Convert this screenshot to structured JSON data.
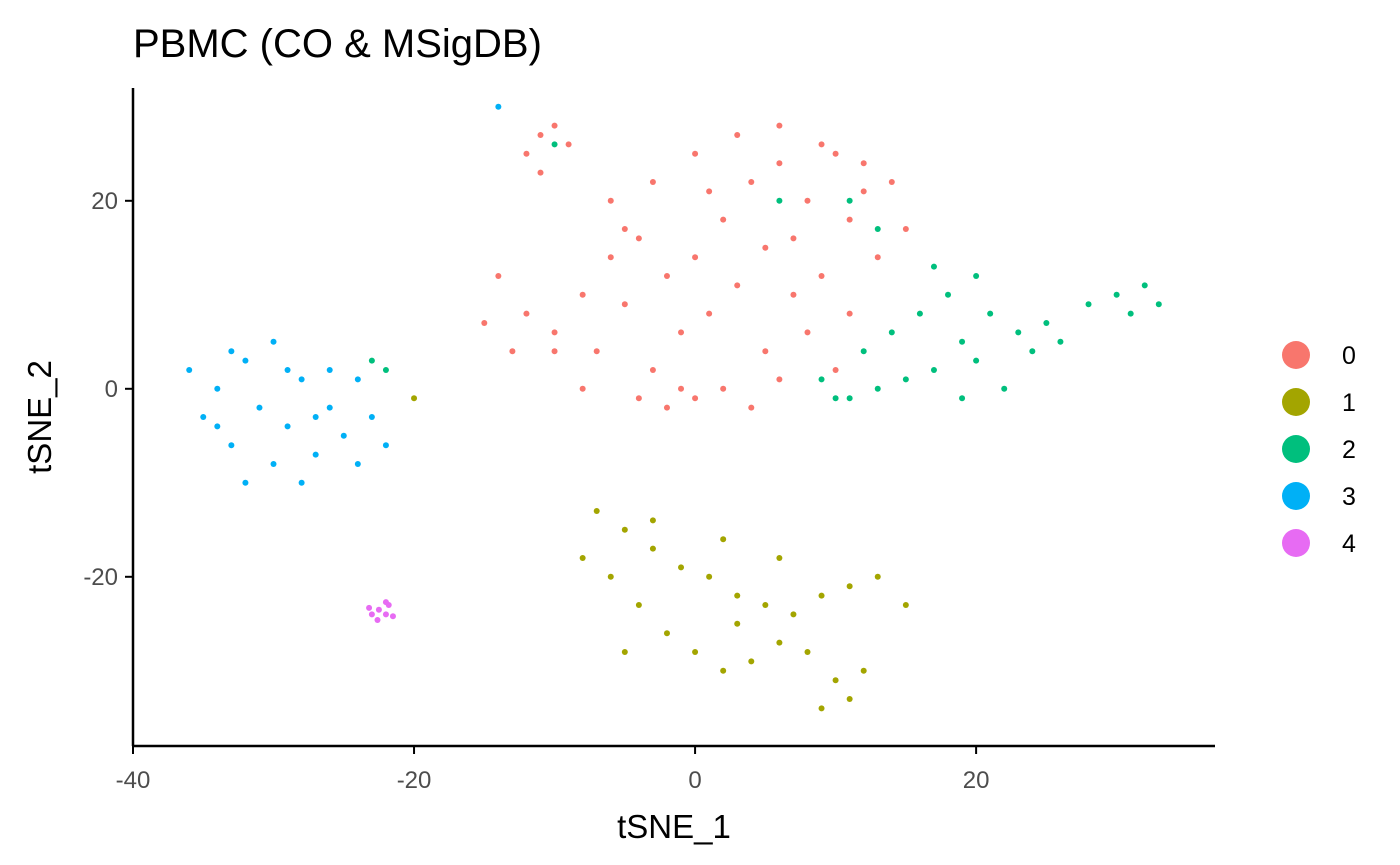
{
  "chart_data": {
    "type": "scatter",
    "title": "PBMC (CO & MSigDB)",
    "xlabel": "tSNE_1",
    "ylabel": "tSNE_2",
    "xlim": [
      -40,
      37
    ],
    "ylim": [
      -38,
      32
    ],
    "xticks": [
      -40,
      -20,
      0,
      20
    ],
    "yticks": [
      -20,
      0,
      20
    ],
    "xtick_labels": [
      "-40",
      "-20",
      "0",
      "20"
    ],
    "ytick_labels": [
      "-20",
      "0",
      "20"
    ],
    "grid": false,
    "legend_position": "right",
    "series": [
      {
        "name": "0",
        "color": "#F8766D",
        "points": [
          [
            -11,
            27
          ],
          [
            -12,
            25
          ],
          [
            -10,
            28
          ],
          [
            -11,
            23
          ],
          [
            -9,
            26
          ],
          [
            -14,
            12
          ],
          [
            -12,
            8
          ],
          [
            -10,
            6
          ],
          [
            -8,
            10
          ],
          [
            -7,
            4
          ],
          [
            -6,
            14
          ],
          [
            -5,
            9
          ],
          [
            -4,
            16
          ],
          [
            -3,
            2
          ],
          [
            -2,
            12
          ],
          [
            -1,
            6
          ],
          [
            0,
            14
          ],
          [
            1,
            8
          ],
          [
            2,
            18
          ],
          [
            3,
            11
          ],
          [
            4,
            22
          ],
          [
            5,
            15
          ],
          [
            6,
            24
          ],
          [
            7,
            16
          ],
          [
            8,
            20
          ],
          [
            9,
            12
          ],
          [
            10,
            25
          ],
          [
            11,
            18
          ],
          [
            12,
            21
          ],
          [
            13,
            14
          ],
          [
            14,
            22
          ],
          [
            15,
            17
          ],
          [
            -4,
            -1
          ],
          [
            -2,
            -2
          ],
          [
            0,
            -1
          ],
          [
            2,
            0
          ],
          [
            4,
            -2
          ],
          [
            6,
            1
          ],
          [
            -8,
            0
          ],
          [
            -10,
            4
          ],
          [
            -6,
            20
          ],
          [
            -3,
            22
          ],
          [
            0,
            25
          ],
          [
            3,
            27
          ],
          [
            6,
            28
          ],
          [
            9,
            26
          ],
          [
            12,
            24
          ],
          [
            -13,
            4
          ],
          [
            -15,
            7
          ],
          [
            8,
            6
          ],
          [
            10,
            2
          ],
          [
            -1,
            0
          ],
          [
            5,
            4
          ],
          [
            -5,
            17
          ],
          [
            1,
            21
          ],
          [
            7,
            10
          ],
          [
            11,
            8
          ]
        ]
      },
      {
        "name": "1",
        "color": "#A3A500",
        "points": [
          [
            -7,
            -13
          ],
          [
            -5,
            -15
          ],
          [
            -3,
            -17
          ],
          [
            -1,
            -19
          ],
          [
            1,
            -20
          ],
          [
            3,
            -22
          ],
          [
            5,
            -23
          ],
          [
            7,
            -24
          ],
          [
            9,
            -22
          ],
          [
            11,
            -21
          ],
          [
            13,
            -20
          ],
          [
            15,
            -23
          ],
          [
            -6,
            -20
          ],
          [
            -4,
            -23
          ],
          [
            -2,
            -26
          ],
          [
            0,
            -28
          ],
          [
            2,
            -30
          ],
          [
            4,
            -29
          ],
          [
            6,
            -27
          ],
          [
            8,
            -28
          ],
          [
            10,
            -31
          ],
          [
            11,
            -33
          ],
          [
            12,
            -30
          ],
          [
            9,
            -34
          ],
          [
            -8,
            -18
          ],
          [
            -3,
            -14
          ],
          [
            2,
            -16
          ],
          [
            6,
            -18
          ],
          [
            -5,
            -28
          ],
          [
            3,
            -25
          ],
          [
            -20,
            -1
          ]
        ]
      },
      {
        "name": "2",
        "color": "#00BF7D",
        "points": [
          [
            12,
            4
          ],
          [
            14,
            6
          ],
          [
            16,
            8
          ],
          [
            17,
            2
          ],
          [
            18,
            10
          ],
          [
            19,
            5
          ],
          [
            20,
            3
          ],
          [
            21,
            8
          ],
          [
            22,
            0
          ],
          [
            23,
            6
          ],
          [
            24,
            4
          ],
          [
            25,
            7
          ],
          [
            26,
            5
          ],
          [
            28,
            9
          ],
          [
            30,
            10
          ],
          [
            31,
            8
          ],
          [
            32,
            11
          ],
          [
            33,
            9
          ],
          [
            15,
            1
          ],
          [
            19,
            -1
          ],
          [
            17,
            13
          ],
          [
            20,
            12
          ],
          [
            13,
            0
          ],
          [
            11,
            -1
          ],
          [
            10,
            -1
          ],
          [
            9,
            1
          ],
          [
            6,
            20
          ],
          [
            11,
            20
          ],
          [
            13,
            17
          ],
          [
            -10,
            26
          ],
          [
            -23,
            3
          ],
          [
            -22,
            2
          ]
        ]
      },
      {
        "name": "3",
        "color": "#00B0F6",
        "points": [
          [
            -36,
            2
          ],
          [
            -35,
            -3
          ],
          [
            -34,
            0
          ],
          [
            -33,
            -6
          ],
          [
            -32,
            3
          ],
          [
            -31,
            -2
          ],
          [
            -30,
            5
          ],
          [
            -29,
            -4
          ],
          [
            -28,
            1
          ],
          [
            -27,
            -7
          ],
          [
            -26,
            -2
          ],
          [
            -25,
            -5
          ],
          [
            -24,
            -8
          ],
          [
            -23,
            -3
          ],
          [
            -22,
            -6
          ],
          [
            -30,
            -8
          ],
          [
            -28,
            -10
          ],
          [
            -32,
            -10
          ],
          [
            -26,
            2
          ],
          [
            -24,
            1
          ],
          [
            -34,
            -4
          ],
          [
            -33,
            4
          ],
          [
            -29,
            2
          ],
          [
            -27,
            -3
          ],
          [
            -14,
            30
          ]
        ]
      },
      {
        "name": "4",
        "color": "#E76BF3",
        "points": [
          [
            -23,
            -24
          ],
          [
            -22.5,
            -23.5
          ],
          [
            -22,
            -24
          ],
          [
            -21.8,
            -23
          ],
          [
            -23.2,
            -23.3
          ],
          [
            -22.6,
            -24.6
          ],
          [
            -22,
            -22.7
          ],
          [
            -21.5,
            -24.2
          ]
        ]
      }
    ]
  }
}
